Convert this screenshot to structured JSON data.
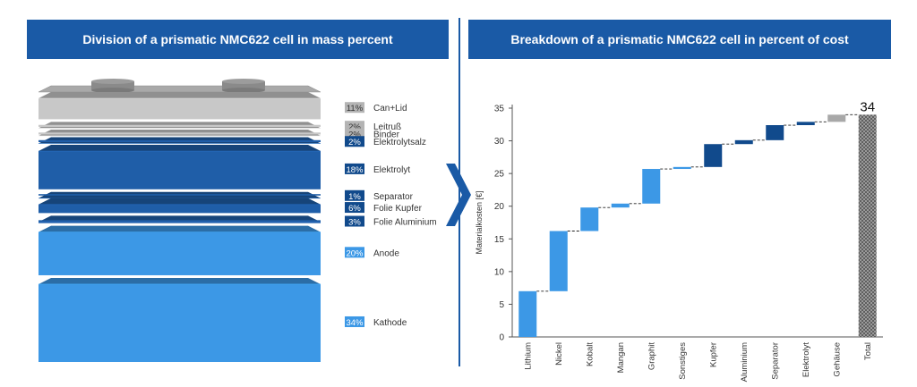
{
  "titles": {
    "left": "Division of a prismatic NMC622 cell in mass percent",
    "right": "Breakdown of a prismatic NMC622 cell in percent of cost"
  },
  "colors": {
    "banner": "#1a5aa6",
    "gray_layer": "#c8c8c8",
    "dark_blue": "#114a8c",
    "mid_blue": "#1f5ea8",
    "light_blue": "#3c98e6",
    "total_hatch": "#808080"
  },
  "icons": {
    "arrow": "right-chevron-arrow"
  },
  "chart_data": [
    {
      "type": "stacked-layers",
      "title": "Division of a prismatic NMC622 cell in mass percent",
      "unit": "%",
      "layers": [
        {
          "name": "Can+Lid",
          "percent": 11,
          "label": "11%",
          "color": "gray"
        },
        {
          "name": "Leitruß",
          "percent": 2,
          "label": "2%",
          "color": "gray"
        },
        {
          "name": "Binder",
          "percent": 2,
          "label": "2%",
          "color": "gray"
        },
        {
          "name": "Elektrolytsalz",
          "percent": 2,
          "label": "2%",
          "color": "dark"
        },
        {
          "name": "Elektrolyt",
          "percent": 18,
          "label": "18%",
          "color": "dark"
        },
        {
          "name": "Separator",
          "percent": 1,
          "label": "1%",
          "color": "dark"
        },
        {
          "name": "Folie Kupfer",
          "percent": 6,
          "label": "6%",
          "color": "dark"
        },
        {
          "name": "Folie Aluminium",
          "percent": 3,
          "label": "3%",
          "color": "dark"
        },
        {
          "name": "Anode",
          "percent": 20,
          "label": "20%",
          "color": "light"
        },
        {
          "name": "Kathode",
          "percent": 34,
          "label": "34%",
          "color": "light"
        }
      ]
    },
    {
      "type": "bar",
      "subtype": "waterfall",
      "title": "Breakdown of a prismatic NMC622 cell in percent of cost",
      "ylabel": "Materialkosten [€]",
      "ylim": [
        0,
        35
      ],
      "yticks": [
        0,
        5,
        10,
        15,
        20,
        25,
        30,
        35
      ],
      "categories": [
        "Lithium",
        "Nickel",
        "Kobalt",
        "Mangan",
        "Graphit",
        "Sonstiges",
        "Kupfer",
        "Aluminium",
        "Separator",
        "Elektrolyt",
        "Gehäuse",
        "Total"
      ],
      "values": [
        7.0,
        9.2,
        3.6,
        0.6,
        5.3,
        0.3,
        3.5,
        0.6,
        2.3,
        0.5,
        1.1,
        34
      ],
      "color_keys": [
        "light",
        "light",
        "light",
        "light",
        "light",
        "light",
        "dark",
        "dark",
        "dark",
        "dark",
        "gray",
        "hatch"
      ],
      "total_label": "34",
      "grid": false
    }
  ]
}
